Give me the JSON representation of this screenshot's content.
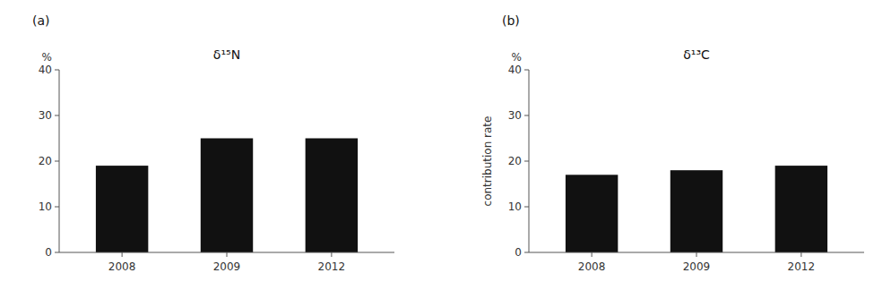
{
  "chart_data": [
    {
      "type": "bar",
      "title": "δ¹⁵N",
      "y_unit": "%",
      "panel_label": "(a)",
      "categories": [
        "2008",
        "2009",
        "2012"
      ],
      "values": [
        19,
        25,
        25
      ],
      "color": "#111111",
      "ylim": [
        0,
        40
      ],
      "yticks": [
        0,
        10,
        20,
        30,
        40
      ],
      "grid": false
    },
    {
      "type": "bar",
      "title": "δ¹³C",
      "y_unit": "%",
      "panel_label": "(b)",
      "ylabel": "contribution rate",
      "categories": [
        "2008",
        "2009",
        "2012"
      ],
      "values": [
        17,
        18,
        19
      ],
      "color": "#111111",
      "ylim": [
        0,
        40
      ],
      "yticks": [
        0,
        10,
        20,
        30,
        40
      ],
      "grid": false
    }
  ]
}
